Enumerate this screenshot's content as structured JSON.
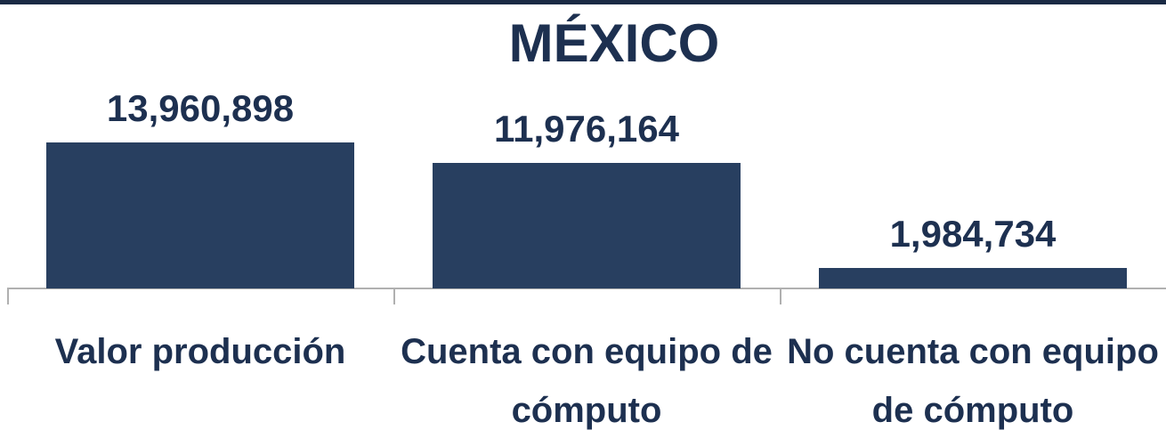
{
  "chart_data": {
    "type": "bar",
    "title": "MÉXICO",
    "categories": [
      "Valor producción",
      "Cuenta con equipo de cómputo",
      "No cuenta con equipo de cómputo"
    ],
    "values": [
      13960898,
      11976164,
      1984734
    ],
    "value_labels": [
      "13,960,898",
      "11,976,164",
      "1,984,734"
    ],
    "color": "#283f60"
  }
}
